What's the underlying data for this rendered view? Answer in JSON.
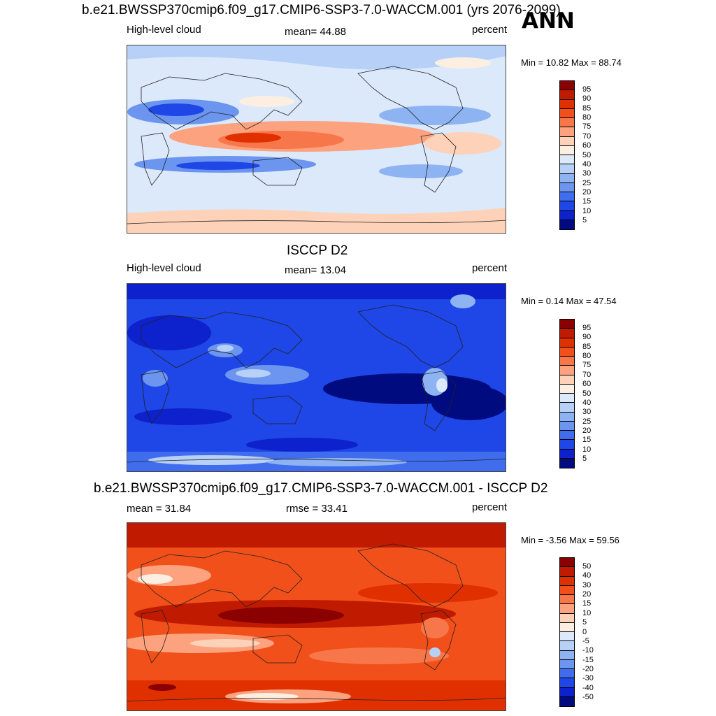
{
  "header": {
    "title": "b.e21.BWSSP370cmip6.f09_g17.CMIP6-SSP3-7.0-WACCM.001 (yrs 2076-2099)",
    "season": "ANN"
  },
  "panel1": {
    "left_label": "High-level cloud",
    "stat_label": "mean=  44.88",
    "units": "percent",
    "minmax": "Min =  10.82 Max =  88.74"
  },
  "panel2": {
    "section_title": "ISCCP D2",
    "left_label": "High-level cloud",
    "stat_label": "mean=  13.04",
    "units": "percent",
    "minmax": "Min =   0.14 Max =  47.54"
  },
  "panel3": {
    "section_title": "b.e21.BWSSP370cmip6.f09_g17.CMIP6-SSP3-7.0-WACCM.001 - ISCCP D2",
    "left_label": "mean =  31.84",
    "stat_label": "rmse =  33.41",
    "units": "percent",
    "minmax": "Min =  -3.56 Max =  59.56"
  },
  "colorbar_abs": {
    "labels": [
      "95",
      "90",
      "85",
      "80",
      "75",
      "70",
      "60",
      "50",
      "40",
      "30",
      "25",
      "20",
      "15",
      "10",
      "5"
    ],
    "colors": [
      "#8b0000",
      "#c01a00",
      "#e03000",
      "#f2501a",
      "#f7774a",
      "#fca27f",
      "#fdd2b8",
      "#fdeee2",
      "#dbe9fb",
      "#b7d0f7",
      "#8db3f2",
      "#6b95ee",
      "#3f6ded",
      "#1f46e6",
      "#0d21cc",
      "#000b80"
    ]
  },
  "colorbar_diff": {
    "labels": [
      "50",
      "40",
      "30",
      "20",
      "15",
      "10",
      "5",
      "0",
      "-5",
      "-10",
      "-15",
      "-20",
      "-30",
      "-40",
      "-50"
    ],
    "colors": [
      "#8b0000",
      "#c01a00",
      "#e03000",
      "#f2501a",
      "#f7774a",
      "#fca27f",
      "#fdd2b8",
      "#fdeee2",
      "#dbe9fb",
      "#b7d0f7",
      "#8db3f2",
      "#6b95ee",
      "#3f6ded",
      "#1f46e6",
      "#0d21cc",
      "#000b80"
    ]
  }
}
